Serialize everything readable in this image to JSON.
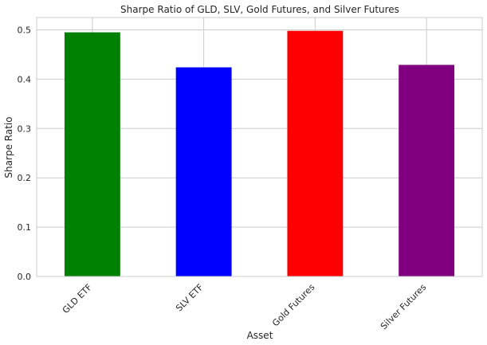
{
  "chart_data": {
    "type": "bar",
    "title": "Sharpe Ratio of GLD, SLV, Gold Futures, and Silver Futures",
    "xlabel": "Asset",
    "ylabel": "Sharpe Ratio",
    "categories": [
      "GLD ETF",
      "SLV ETF",
      "Gold Futures",
      "Silver Futures"
    ],
    "values": [
      0.495,
      0.424,
      0.498,
      0.429
    ],
    "colors": [
      "#008000",
      "#0000ff",
      "#ff0000",
      "#800080"
    ],
    "ylim": [
      0,
      0.525
    ],
    "yticks": [
      0.0,
      0.1,
      0.2,
      0.3,
      0.4,
      0.5
    ],
    "ytick_labels": [
      "0.0",
      "0.1",
      "0.2",
      "0.3",
      "0.4",
      "0.5"
    ],
    "grid": true,
    "legend": false
  }
}
